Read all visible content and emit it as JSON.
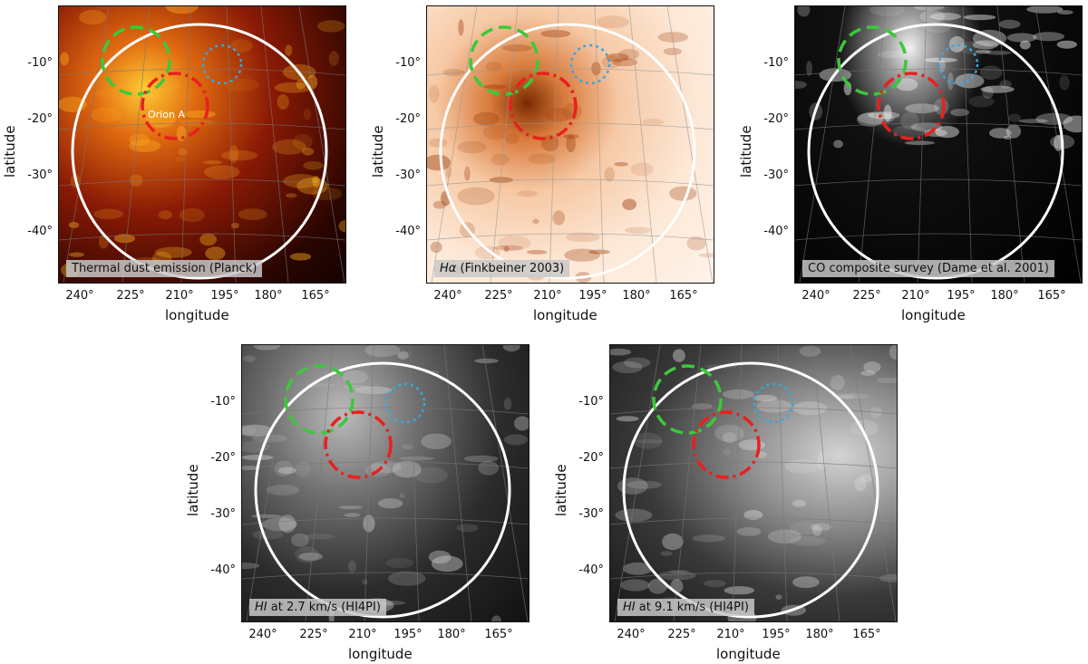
{
  "panels": [
    {
      "label_main": "Thermal dust emission (Planck)",
      "label_italic": "",
      "style": "dust",
      "annotation": "Orion A"
    },
    {
      "label_main": " (Finkbeiner 2003)",
      "label_italic": "Hα",
      "style": "halpha",
      "annotation": ""
    },
    {
      "label_main": "CO composite survey (Dame et al. 2001)",
      "label_italic": "",
      "style": "co",
      "annotation": ""
    },
    {
      "label_main": " at 2.7 km/s (HI4PI)",
      "label_italic": "HI",
      "style": "hi1",
      "annotation": ""
    },
    {
      "label_main": " at 9.1 km/s (HI4PI)",
      "label_italic": "HI",
      "style": "hi2",
      "annotation": ""
    }
  ],
  "axes": {
    "xlabel": "longitude",
    "ylabel": "latitude",
    "xticks": [
      "240°",
      "225°",
      "210°",
      "195°",
      "180°",
      "165°"
    ],
    "yticks": [
      "-10°",
      "-20°",
      "-30°",
      "-40°"
    ]
  },
  "colors": {
    "outer_circle": "#ffffff",
    "green_circle": "#3cc83c",
    "red_circle": "#e8201e",
    "blue_circle": "#3aa6e0"
  }
}
